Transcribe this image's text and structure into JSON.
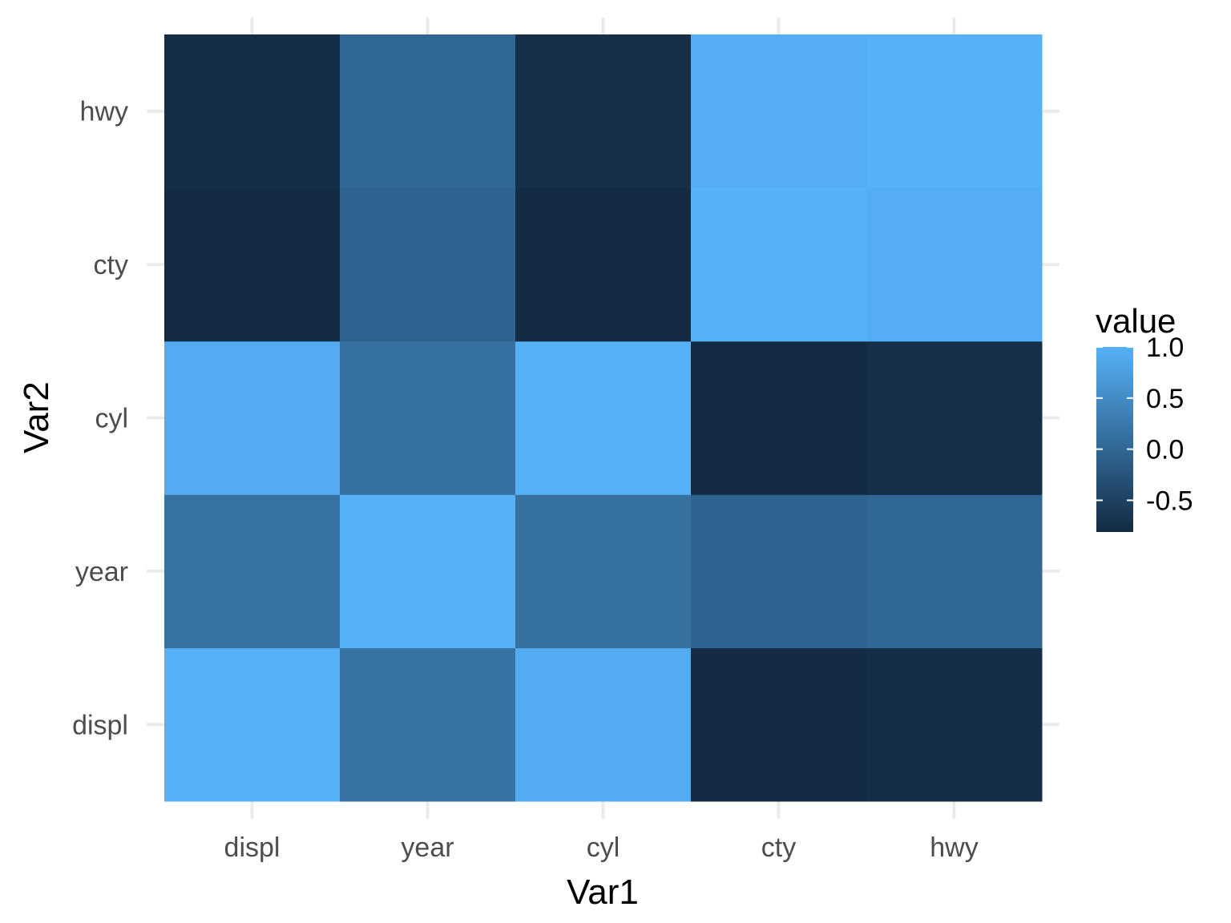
{
  "chart_data": {
    "type": "heatmap",
    "x_categories": [
      "displ",
      "year",
      "cyl",
      "cty",
      "hwy"
    ],
    "y_categories": [
      "displ",
      "year",
      "cyl",
      "cty",
      "hwy"
    ],
    "matrix": [
      [
        1.0,
        0.15,
        0.93,
        -0.8,
        -0.77
      ],
      [
        0.15,
        1.0,
        0.12,
        -0.04,
        0.0
      ],
      [
        0.93,
        0.12,
        1.0,
        -0.81,
        -0.76
      ],
      [
        -0.8,
        -0.04,
        -0.81,
        1.0,
        0.96
      ],
      [
        -0.77,
        0.0,
        -0.76,
        0.96,
        1.0
      ]
    ],
    "xlabel": "Var1",
    "ylabel": "Var2",
    "legend": {
      "title": "value",
      "ticks": [
        1.0,
        0.5,
        0.0,
        -0.5
      ],
      "tick_labels": [
        "1.0",
        "0.5",
        "0.0",
        "-0.5"
      ],
      "min": -0.81,
      "max": 1.0,
      "placement": "right"
    },
    "colors": {
      "low": "#132b43",
      "high": "#56b1f7"
    },
    "grid": true
  }
}
